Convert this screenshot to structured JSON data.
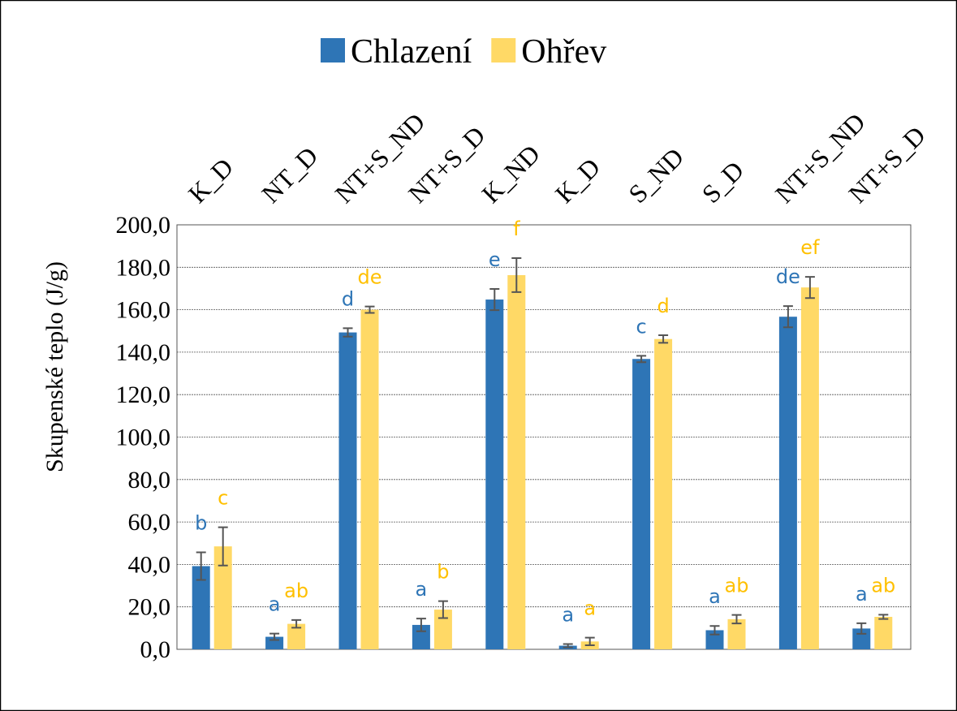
{
  "chart_data": {
    "type": "bar",
    "y_label": "Skupenské teplo (J/g)",
    "categories": [
      "K_D",
      "NT_D",
      "NT+S_ND",
      "NT+S_D",
      "K_ND",
      "K_D",
      "S_ND",
      "S_D",
      "NT+S_ND",
      "NT+S_D"
    ],
    "series": [
      {
        "name": "Chlazení",
        "color": "#2e75b6",
        "label_color": "#2e75b6",
        "values": [
          39.2,
          5.9,
          149.3,
          11.5,
          164.8,
          1.7,
          136.8,
          9.0,
          156.7,
          9.8
        ],
        "errors": [
          6.5,
          1.5,
          2.0,
          3.0,
          5.0,
          0.8,
          1.5,
          2.0,
          5.0,
          2.5
        ],
        "letters": [
          "b",
          "a",
          "d",
          "a",
          "e",
          "a",
          "c",
          "a",
          "de",
          "a"
        ]
      },
      {
        "name": "Ohřev",
        "color": "#ffd966",
        "label_color": "#ffc000",
        "values": [
          48.5,
          12.0,
          160.0,
          18.7,
          176.3,
          3.7,
          146.2,
          14.2,
          170.5,
          15.3
        ],
        "errors": [
          9.0,
          1.8,
          1.5,
          4.0,
          8.0,
          1.8,
          1.8,
          2.0,
          5.0,
          1.0
        ],
        "letters": [
          "c",
          "ab",
          "de",
          "b",
          "f",
          "a",
          "d",
          "ab",
          "ef",
          "ab"
        ]
      }
    ],
    "ylim": [
      0,
      200
    ],
    "yticks": [
      {
        "value": 0,
        "label": "0,0"
      },
      {
        "value": 20,
        "label": "20,0"
      },
      {
        "value": 40,
        "label": "40,0"
      },
      {
        "value": 60,
        "label": "60,0"
      },
      {
        "value": 80,
        "label": "80,0"
      },
      {
        "value": 100,
        "label": "100,0"
      },
      {
        "value": 120,
        "label": "120,0"
      },
      {
        "value": 140,
        "label": "140,0"
      },
      {
        "value": 160,
        "label": "160,0"
      },
      {
        "value": 180,
        "label": "180,0"
      },
      {
        "value": 200,
        "label": "200,0"
      }
    ],
    "grid": true,
    "legend": "top"
  }
}
